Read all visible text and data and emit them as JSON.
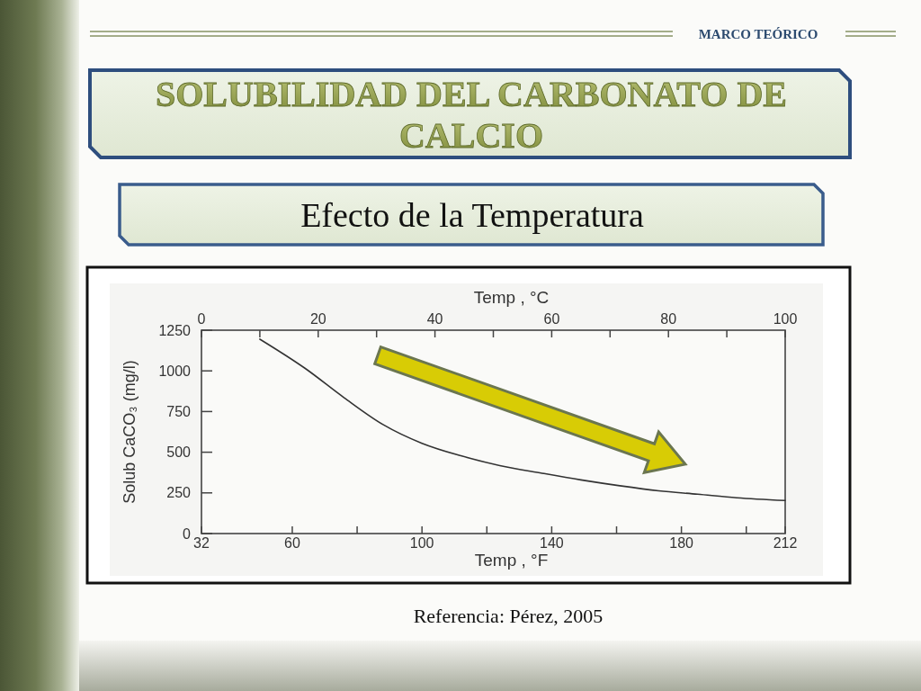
{
  "chart_data": {
    "type": "line",
    "title": "SOLUBILIDAD DEL CARBONATO DE CALCIO",
    "subtitle": "Efecto de la Temperatura",
    "xlabel": "Temp , °F",
    "x2label": "Temp , °C",
    "ylabel": "Solub CaCO₃ (mg/l)",
    "annotations": [
      "MARCO TEÓRICO",
      "Referencia: Pérez, 2005"
    ],
    "x": [
      50,
      64,
      76,
      88,
      100,
      112,
      124,
      137,
      149,
      161,
      173,
      185,
      197,
      212
    ],
    "series": [
      {
        "color": "#333333",
        "values": [
          1195,
          1015,
          835,
          670,
          555,
          478,
          418,
          371,
          330,
          294,
          263,
          242,
          220,
          203
        ]
      }
    ],
    "xlim": [
      32,
      212
    ],
    "xticks": [
      32,
      60,
      {
        "value": 80,
        "label": null
      },
      100,
      {
        "value": 120,
        "label": null
      },
      140,
      {
        "value": 160,
        "label": null
      },
      180,
      {
        "value": 200,
        "label": null
      },
      212
    ],
    "x2lim": [
      0,
      100
    ],
    "x2ticks": [
      0,
      {
        "value": 10,
        "label": null
      },
      20,
      {
        "value": 30,
        "label": null
      },
      40,
      {
        "value": 50,
        "label": null
      },
      60,
      {
        "value": 70,
        "label": null
      },
      80,
      {
        "value": 90,
        "label": null
      },
      100
    ],
    "ylim": [
      0,
      1250
    ],
    "yticks": [
      0,
      250,
      500,
      750,
      1000,
      1250
    ],
    "line_style": "solid"
  }
}
